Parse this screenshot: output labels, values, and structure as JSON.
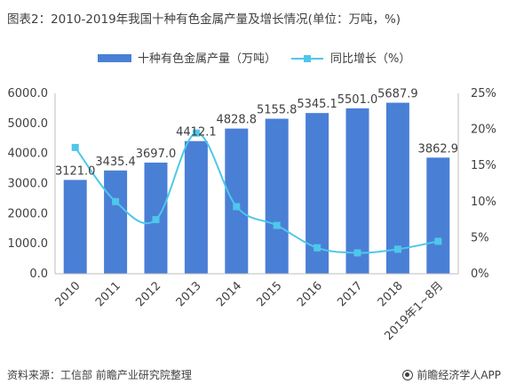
{
  "title": "图表2：2010-2019年我国十种有色金属产量及增长情况(单位：万吨，%)",
  "source": "资料来源：工信部 前瞻产业研究院整理",
  "brand": "前瞻经济学人APP",
  "colors": {
    "bar": "#4a7fd6",
    "line": "#4ec7ea",
    "text": "#404040",
    "axis": "#bfbfbf"
  },
  "chart_data": {
    "type": "bar",
    "categories": [
      "2010",
      "2011",
      "2012",
      "2013",
      "2014",
      "2015",
      "2016",
      "2017",
      "2018",
      "2019年1~8月"
    ],
    "series": [
      {
        "name": "十种有色金属产量（万吨）",
        "type": "bar",
        "axis": "left",
        "values": [
          3121.0,
          3435.4,
          3697.0,
          4412.1,
          4828.8,
          5155.8,
          5345.1,
          5501.0,
          5687.9,
          3862.9
        ],
        "labels": [
          "3121.0",
          "3435.4",
          "3697.0",
          "4412.1",
          "4828.8",
          "5155.8",
          "5345.1",
          "5501.0",
          "5687.9",
          "3862.9"
        ]
      },
      {
        "name": "同比增长（%）",
        "type": "line",
        "axis": "right",
        "smooth": true,
        "values": [
          17.5,
          10.0,
          7.5,
          19.5,
          9.3,
          6.7,
          3.6,
          2.9,
          3.4,
          4.5
        ]
      }
    ],
    "ylim_left": [
      0,
      6000
    ],
    "yticks_left": [
      "0.0",
      "1000.0",
      "2000.0",
      "3000.0",
      "4000.0",
      "5000.0",
      "6000.0"
    ],
    "ylim_right": [
      0,
      25
    ],
    "yticks_right": [
      "0%",
      "5%",
      "10%",
      "15%",
      "20%",
      "25%"
    ],
    "legend": "top"
  }
}
